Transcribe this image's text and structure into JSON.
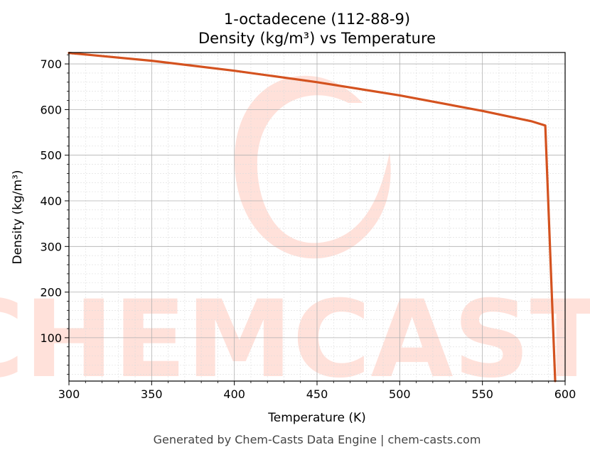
{
  "chart_data": {
    "type": "line",
    "title": "1-octadecene (112-88-9)",
    "subtitle": "Density (kg/m³) vs Temperature",
    "xlabel": "Temperature (K)",
    "ylabel": "Density (kg/m³)",
    "xlim": [
      300,
      600
    ],
    "ylim": [
      5,
      725
    ],
    "xticks": [
      300,
      350,
      400,
      450,
      500,
      550,
      600
    ],
    "yticks": [
      100,
      200,
      300,
      400,
      500,
      600,
      700
    ],
    "grid": true,
    "series": [
      {
        "color": "#d4521f",
        "x": [
          300,
          350,
          400,
          450,
          500,
          550,
          580,
          588,
          594
        ],
        "y": [
          724,
          707,
          685,
          660,
          631,
          597,
          574,
          565,
          5
        ]
      }
    ]
  },
  "watermark": "CHEMCASTS",
  "footer": "Generated by Chem-Casts Data Engine | chem-casts.com"
}
